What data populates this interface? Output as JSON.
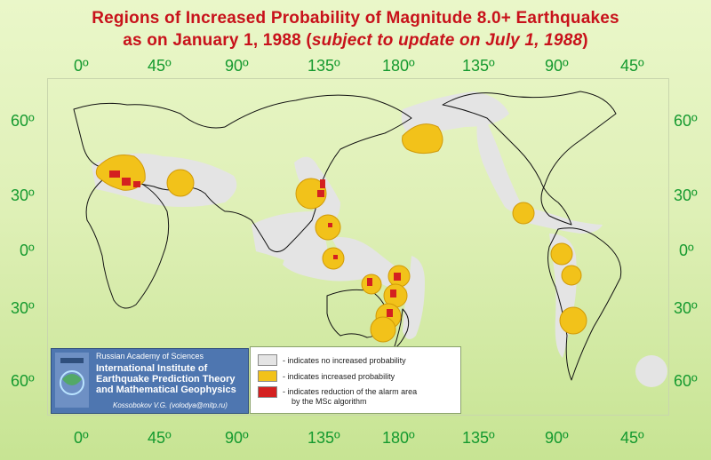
{
  "title": {
    "line1": "Regions of Increased Probability of Magnitude 8.0+ Earthquakes",
    "line2_prefix": "as on January 1, 1988 (",
    "line2_italic": "subject to update on July 1, 1988",
    "line2_suffix": ")"
  },
  "longitude_labels": [
    "0º",
    "45º",
    "90º",
    "135º",
    "180º",
    "135º",
    "90º",
    "45º"
  ],
  "latitude_labels": [
    "60º",
    "30º",
    "0º",
    "30º",
    "60º"
  ],
  "colors": {
    "no_increase": "#e4e4e4",
    "increased": "#f2c21a",
    "reduced": "#d42020",
    "title": "#c8121b",
    "axis_labels": "#159a2f",
    "org_panel": "#4e76b0"
  },
  "organization": {
    "academy": "Russian Academy of Sciences",
    "name_line1": "International Institute of",
    "name_line2": "Earthquake Prediction Theory",
    "name_line3": "and Mathematical Geophysics",
    "author": "Kossobokov V.G. (volodya@mitp.ru)"
  },
  "legend": {
    "items": [
      {
        "color_key": "no_increase",
        "text": "- indicates no increased probability"
      },
      {
        "color_key": "increased",
        "text": "- indicates increased probability"
      },
      {
        "color_key": "reduced",
        "text": "- indicates reduction of the alarm area",
        "text2": "by the MSc algorithm"
      }
    ]
  }
}
